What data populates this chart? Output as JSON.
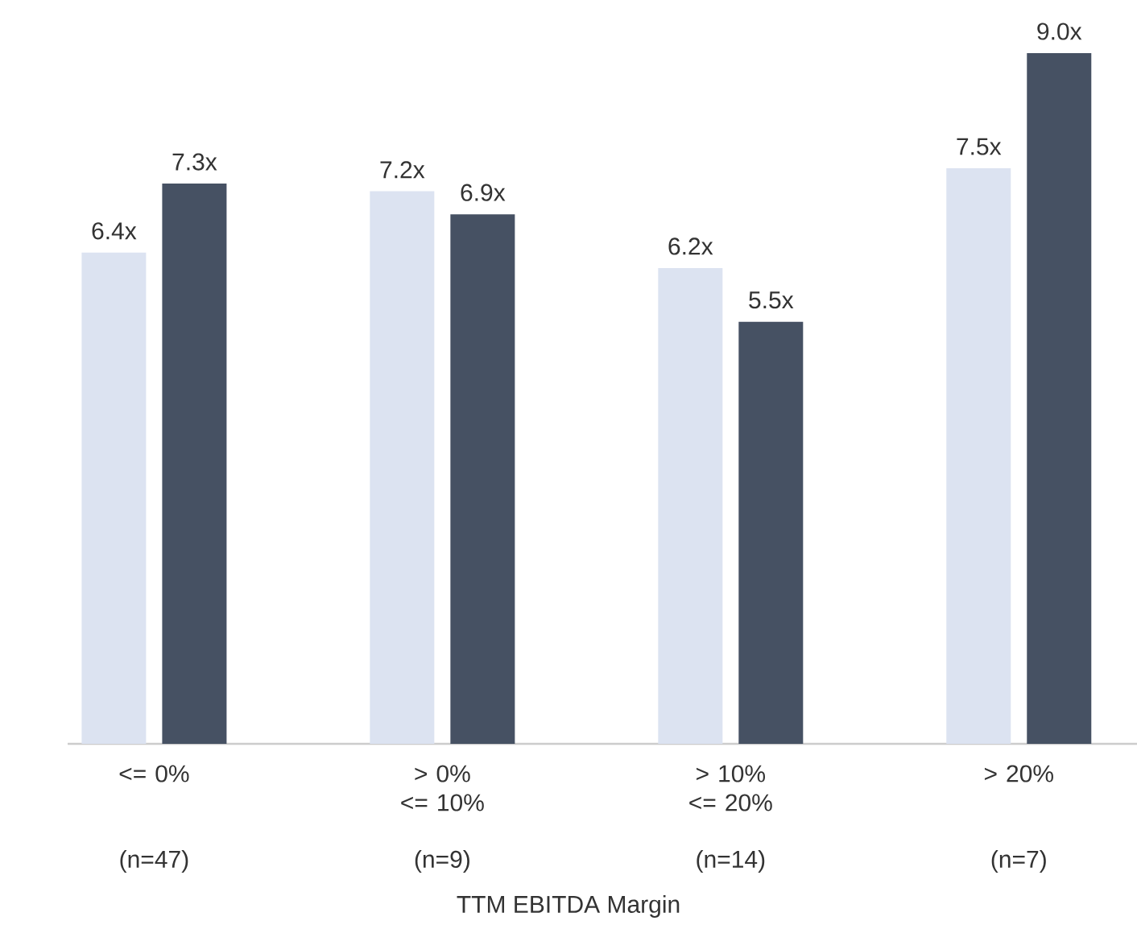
{
  "chart_data": {
    "type": "bar",
    "xlabel": "TTM EBITDA Margin",
    "categories": [
      "<= 0%",
      "> 0% <= 10%",
      "> 10% <= 20%",
      "> 20%"
    ],
    "series": [
      {
        "color": "#dce3f1",
        "values": [
          6.4,
          7.2,
          6.2,
          7.5
        ],
        "value_labels": [
          "6.4x",
          "7.2x",
          "6.2x",
          "7.5x"
        ]
      },
      {
        "color": "#465163",
        "values": [
          7.3,
          6.9,
          5.5,
          9.0
        ],
        "value_labels": [
          "7.3x",
          "6.9x",
          "5.5x",
          "9.0x"
        ]
      }
    ],
    "annotations": [
      "(n=47)",
      "(n=9)",
      "(n=14)",
      "(n=7)"
    ]
  }
}
